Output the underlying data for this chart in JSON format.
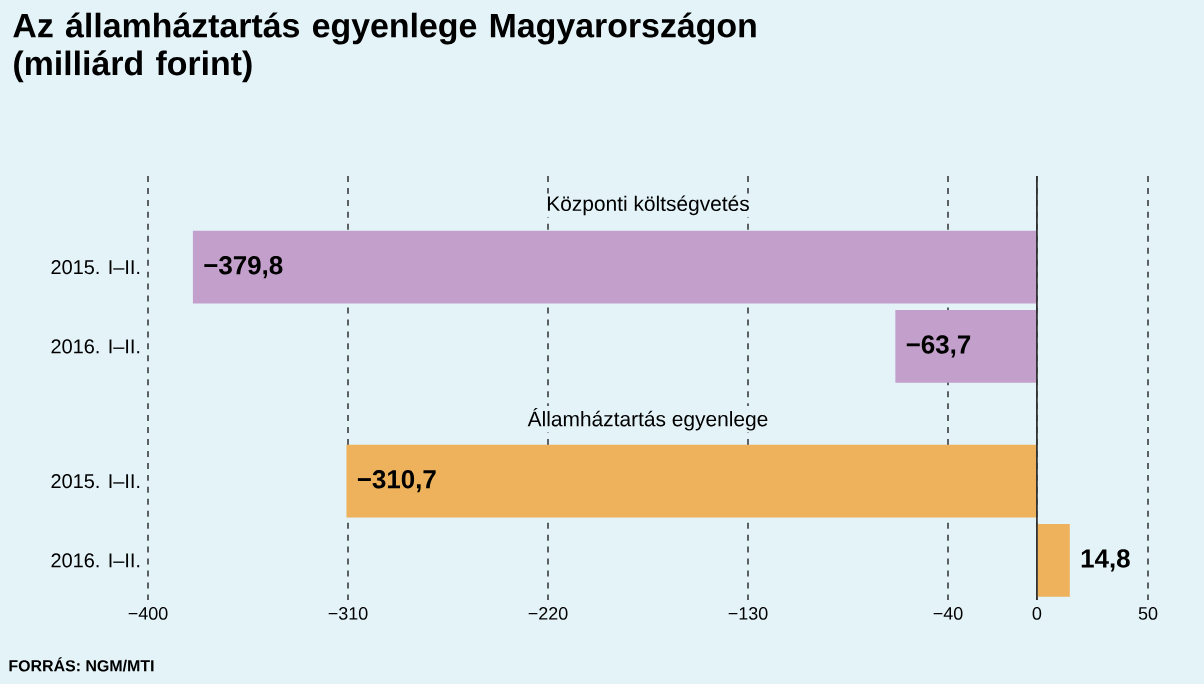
{
  "chart_data": {
    "type": "bar",
    "orientation": "horizontal",
    "title": "Az államháztartás egyenlege Magyarországon (milliárd forint)",
    "categories": [
      "2015. I–II.",
      "2016. I–II.",
      "2015. I–II.",
      "2016. I–II."
    ],
    "series": [
      {
        "name": "Központi költségvetés",
        "color": "#c39fcb",
        "values": [
          -379.8,
          -63.7,
          null,
          null
        ],
        "value_labels": [
          "−379,8",
          "−63,7",
          null,
          null
        ]
      },
      {
        "name": "Államháztartás egyenlege",
        "color": "#edb25b",
        "values": [
          null,
          null,
          -310.7,
          14.8
        ],
        "value_labels": [
          null,
          null,
          "−310,7",
          "14,8"
        ]
      }
    ],
    "xlim": [
      -400,
      50
    ],
    "xticks": [
      {
        "value": -400,
        "label": "−400"
      },
      {
        "value": -310,
        "label": "−310"
      },
      {
        "value": -220,
        "label": "−220"
      },
      {
        "value": -130,
        "label": "−130"
      },
      {
        "value": -40,
        "label": "−40"
      },
      0,
      50
    ],
    "grid": "x",
    "ref_lines": [
      {
        "axis": "x",
        "value": 0,
        "color": "#333333"
      }
    ],
    "annotations": [
      "FORRÁS: NGM/MTI"
    ]
  }
}
